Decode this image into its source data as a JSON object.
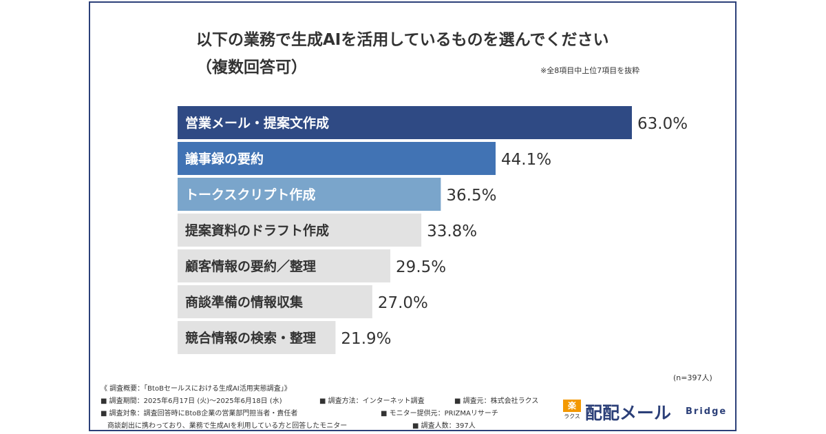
{
  "title_line1": "以下の業務で生成AIを活用しているものを選んでください",
  "title_line2": "（複数回答可）",
  "note": "※全8項目中上位7項目を抜粋",
  "chart_data": {
    "type": "bar",
    "orientation": "horizontal",
    "categories": [
      "営業メール・提案文作成",
      "議事録の要約",
      "トークスクリプト作成",
      "提案資料のドラフト作成",
      "顧客情報の要約／整理",
      "商談準備の情報収集",
      "競合情報の検索・整理"
    ],
    "values": [
      63.0,
      44.1,
      36.5,
      33.8,
      29.5,
      27.0,
      21.9
    ],
    "value_labels": [
      "63.0%",
      "44.1%",
      "36.5%",
      "33.8%",
      "29.5%",
      "27.0%",
      "21.9%"
    ],
    "bar_colors": [
      "#2f4a84",
      "#4173b4",
      "#7aa5cb",
      "#e2e2e2",
      "#e2e2e2",
      "#e2e2e2",
      "#e2e2e2"
    ],
    "label_colors": [
      "#ffffff",
      "#ffffff",
      "#ffffff",
      "#333333",
      "#333333",
      "#333333",
      "#333333"
    ],
    "xlim": [
      0,
      63.0
    ],
    "grid": false
  },
  "sample_size": "(n=397人)",
  "footer": {
    "heading": "《 調査概要：「BtoBセールスにおける生成AI活用実態調査」》",
    "period": "■ 調査期間：2025年6月17日 (火)〜2025年6月18日 (水)",
    "method": "■ 調査方法：インターネット調査",
    "organizer": "■ 調査元：株式会社ラクス",
    "target_line1": "■ 調査対象：調査回答時にBtoB企業の営業部門担当者・責任者",
    "provider": "■ モニター提供元：PRIZMAリサーチ",
    "target_line2": "商談創出に携わっており、業務で生成AIを利用している方と回答したモニター",
    "count": "■ 調査人数：397人"
  },
  "logo": {
    "badge_text": "楽",
    "badge_sub": "ラクス",
    "main": "配配メール",
    "sub": "Bridge",
    "color": "#2b3f78",
    "badge_color": "#f39800"
  }
}
